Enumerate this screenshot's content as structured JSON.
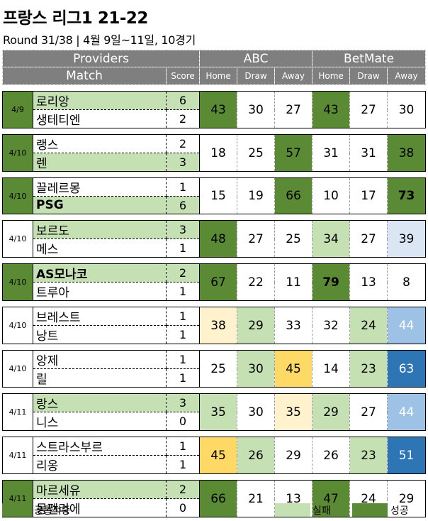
{
  "title": "프랑스 리그1 21-22",
  "subtitle": "Round 31/38  | 4월 9일~11일, 10경기",
  "header": {
    "providers_label": "Providers",
    "match_label": "Match",
    "score_label": "Score",
    "provider1": "ABC",
    "provider2": "BetMate",
    "home": "Home",
    "draw": "Draw",
    "away": "Away"
  },
  "colors": {
    "dark_green": "#5a8a34",
    "light_green": "#c5e0b3",
    "light_yellow": "#fff2cc",
    "yellow": "#ffd965",
    "light_blue": "#dae6f3",
    "mid_blue": "#9dc2e6",
    "dark_blue": "#2e75b6"
  },
  "matches": [
    {
      "date": "4/9",
      "date_bg": "dg",
      "team1": "로리앙",
      "team2": "생테티엔",
      "t1_bg": "lg",
      "t2_bg": "w",
      "t1_bold": false,
      "t2_bold": false,
      "score1": "6",
      "score2": "2",
      "cells": [
        [
          "43",
          "dg",
          false
        ],
        [
          "30",
          "w",
          false
        ],
        [
          "27",
          "w",
          false
        ],
        [
          "43",
          "dg",
          false
        ],
        [
          "27",
          "w",
          false
        ],
        [
          "30",
          "w",
          false
        ]
      ]
    },
    {
      "date": "4/10",
      "date_bg": "dg",
      "team1": "랭스",
      "team2": "렌",
      "t1_bg": "w",
      "t2_bg": "lg",
      "t1_bold": false,
      "t2_bold": false,
      "score1": "2",
      "score2": "3",
      "cells": [
        [
          "18",
          "w",
          false
        ],
        [
          "25",
          "w",
          false
        ],
        [
          "57",
          "dg",
          false
        ],
        [
          "31",
          "w",
          false
        ],
        [
          "31",
          "w",
          false
        ],
        [
          "38",
          "dg",
          false
        ]
      ]
    },
    {
      "date": "4/10",
      "date_bg": "dg",
      "team1": "끌레르몽",
      "team2": "PSG",
      "t1_bg": "w",
      "t2_bg": "lg",
      "t1_bold": false,
      "t2_bold": true,
      "score1": "1",
      "score2": "6",
      "cells": [
        [
          "15",
          "w",
          false
        ],
        [
          "19",
          "w",
          false
        ],
        [
          "66",
          "dg",
          false
        ],
        [
          "10",
          "w",
          false
        ],
        [
          "17",
          "w",
          false
        ],
        [
          "73",
          "dg",
          true
        ]
      ]
    },
    {
      "date": "4/10",
      "date_bg": "w",
      "team1": "보르도",
      "team2": "메스",
      "t1_bg": "lg",
      "t2_bg": "w",
      "t1_bold": false,
      "t2_bold": false,
      "score1": "3",
      "score2": "1",
      "cells": [
        [
          "48",
          "dg",
          false
        ],
        [
          "27",
          "w",
          false
        ],
        [
          "25",
          "w",
          false
        ],
        [
          "34",
          "lg",
          false
        ],
        [
          "27",
          "w",
          false
        ],
        [
          "39",
          "lb",
          false
        ]
      ]
    },
    {
      "date": "4/10",
      "date_bg": "dg",
      "team1": "AS모나코",
      "team2": "트루아",
      "t1_bg": "lg",
      "t2_bg": "w",
      "t1_bold": true,
      "t2_bold": false,
      "score1": "2",
      "score2": "1",
      "cells": [
        [
          "67",
          "dg",
          false
        ],
        [
          "22",
          "w",
          false
        ],
        [
          "11",
          "w",
          false
        ],
        [
          "79",
          "dg",
          true
        ],
        [
          "13",
          "w",
          false
        ],
        [
          "8",
          "w",
          false
        ]
      ]
    },
    {
      "date": "4/10",
      "date_bg": "w",
      "team1": "브레스트",
      "team2": "낭트",
      "t1_bg": "w",
      "t2_bg": "w",
      "t1_bold": false,
      "t2_bold": false,
      "score1": "1",
      "score2": "1",
      "cells": [
        [
          "38",
          "ly",
          false
        ],
        [
          "29",
          "lg",
          false
        ],
        [
          "33",
          "w",
          false
        ],
        [
          "32",
          "w",
          false
        ],
        [
          "24",
          "lg",
          false
        ],
        [
          "44",
          "mb",
          false
        ]
      ]
    },
    {
      "date": "4/10",
      "date_bg": "w",
      "team1": "앙제",
      "team2": "릴",
      "t1_bg": "w",
      "t2_bg": "w",
      "t1_bold": false,
      "t2_bold": false,
      "score1": "1",
      "score2": "1",
      "cells": [
        [
          "25",
          "w",
          false
        ],
        [
          "30",
          "lg",
          false
        ],
        [
          "45",
          "y",
          false
        ],
        [
          "14",
          "w",
          false
        ],
        [
          "23",
          "lg",
          false
        ],
        [
          "63",
          "db",
          false
        ]
      ]
    },
    {
      "date": "4/11",
      "date_bg": "w",
      "team1": "랑스",
      "team2": "니스",
      "t1_bg": "lg",
      "t2_bg": "w",
      "t1_bold": false,
      "t2_bold": false,
      "score1": "3",
      "score2": "0",
      "cells": [
        [
          "35",
          "lg",
          false
        ],
        [
          "30",
          "w",
          false
        ],
        [
          "35",
          "ly",
          false
        ],
        [
          "29",
          "lg",
          false
        ],
        [
          "27",
          "w",
          false
        ],
        [
          "44",
          "mb",
          false
        ]
      ]
    },
    {
      "date": "4/11",
      "date_bg": "w",
      "team1": "스트라스부르",
      "team2": "리옹",
      "t1_bg": "w",
      "t2_bg": "w",
      "t1_bold": false,
      "t2_bold": false,
      "score1": "1",
      "score2": "1",
      "cells": [
        [
          "45",
          "y",
          false
        ],
        [
          "26",
          "lg",
          false
        ],
        [
          "29",
          "w",
          false
        ],
        [
          "26",
          "w",
          false
        ],
        [
          "23",
          "lg",
          false
        ],
        [
          "51",
          "db",
          false
        ]
      ]
    },
    {
      "date": "4/11",
      "date_bg": "dg",
      "team1": "마르세유",
      "team2": "몽펠리에",
      "t1_bg": "lg",
      "t2_bg": "w",
      "t1_bold": false,
      "t2_bold": false,
      "score1": "2",
      "score2": "0",
      "cells": [
        [
          "66",
          "dg",
          false
        ],
        [
          "21",
          "w",
          false
        ],
        [
          "13",
          "w",
          false
        ],
        [
          "47",
          "dg",
          false
        ],
        [
          "24",
          "w",
          false
        ],
        [
          "29",
          "w",
          false
        ]
      ]
    }
  ],
  "legend": {
    "correct_label": "공통적중",
    "fail_label": "실패",
    "success_label": "성공"
  }
}
